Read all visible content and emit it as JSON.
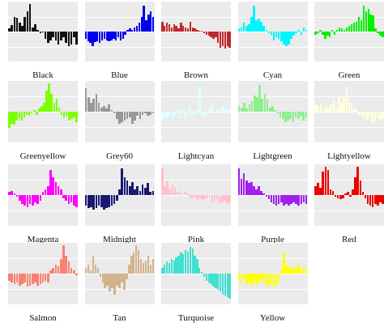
{
  "chart_data": [
    {
      "type": "bar",
      "title": "Black",
      "color": "#111111",
      "ylabel": "",
      "values": [
        0.1,
        0.22,
        0.52,
        0.48,
        0.3,
        0.2,
        0.5,
        0.7,
        0.95,
        0.15,
        0.25,
        0.05,
        -0.05,
        -0.02,
        -0.25,
        -0.4,
        -0.3,
        -0.2,
        -0.3,
        -0.45,
        -0.3,
        -0.2,
        -0.4,
        -0.5,
        -0.45,
        -0.2,
        -0.45
      ]
    },
    {
      "type": "bar",
      "title": "Blue",
      "color": "#0000ee",
      "ylabel": "",
      "values": [
        -0.25,
        -0.35,
        -0.4,
        -0.5,
        -0.38,
        -0.35,
        -0.4,
        -0.3,
        -0.25,
        -0.3,
        -0.35,
        -0.3,
        -0.25,
        -0.3,
        -0.2,
        -0.3,
        -0.25,
        -0.1,
        0.05,
        0.1,
        0.05,
        0.15,
        0.2,
        0.3,
        0.5,
        0.9,
        0.4,
        0.6,
        0.7,
        0.5
      ]
    },
    {
      "type": "bar",
      "title": "Brown",
      "color": "#c0282a",
      "ylabel": "",
      "values": [
        0.35,
        0.2,
        0.3,
        0.25,
        0.15,
        0.25,
        0.2,
        0.1,
        0.3,
        0.2,
        0.15,
        0.1,
        0.35,
        0.15,
        0.1,
        0.05,
        0.02,
        0.02,
        -0.05,
        -0.1,
        -0.15,
        -0.2,
        -0.25,
        -0.2,
        -0.4,
        -0.55,
        -0.5,
        -0.6,
        -0.5,
        -0.55
      ]
    },
    {
      "type": "bar",
      "title": "Cyan",
      "color": "#00f5ff",
      "ylabel": "",
      "values": [
        0.1,
        0.15,
        0.3,
        0.2,
        0.25,
        0.5,
        0.9,
        0.4,
        0.45,
        0.35,
        0.2,
        0.05,
        -0.05,
        -0.1,
        -0.3,
        -0.2,
        -0.25,
        -0.35,
        -0.45,
        -0.5,
        -0.45,
        -0.25,
        -0.15,
        -0.05,
        0.05,
        -0.1,
        0.15,
        0.05
      ]
    },
    {
      "type": "bar",
      "title": "Green",
      "color": "#00ee00",
      "ylabel": "",
      "values": [
        -0.1,
        -0.05,
        0.05,
        -0.1,
        -0.25,
        -0.15,
        -0.2,
        0.05,
        -0.1,
        0.05,
        0.15,
        0.1,
        0.05,
        0.15,
        0.2,
        0.25,
        0.3,
        0.35,
        0.5,
        0.4,
        0.9,
        0.7,
        0.8,
        0.6,
        0.55,
        0.1,
        -0.05,
        -0.15,
        -0.2
      ]
    },
    {
      "type": "bar",
      "title": "Greenyellow",
      "color": "#7fff00",
      "ylabel": "",
      "values": [
        -0.55,
        -0.4,
        -0.45,
        -0.3,
        -0.25,
        -0.3,
        -0.2,
        -0.1,
        -0.15,
        -0.05,
        0.05,
        -0.1,
        0.1,
        0.2,
        0.3,
        0.7,
        0.95,
        0.6,
        0.3,
        0.45,
        0.15,
        -0.1,
        -0.2,
        -0.15,
        -0.3,
        -0.25,
        -0.2,
        -0.35
      ]
    },
    {
      "type": "bar",
      "title": "Grey60",
      "color": "#999999",
      "ylabel": "",
      "values": [
        0.8,
        0.5,
        0.3,
        0.45,
        0.6,
        0.3,
        0.15,
        0.2,
        0.1,
        0.25,
        0.05,
        -0.05,
        -0.25,
        -0.4,
        -0.35,
        -0.3,
        -0.25,
        -0.2,
        -0.4,
        -0.3,
        -0.15,
        -0.25,
        -0.1,
        -0.05,
        -0.15,
        -0.1,
        -0.05
      ]
    },
    {
      "type": "bar",
      "title": "Lightcyan",
      "color": "#e0ffff",
      "ylabel": "",
      "values": [
        -0.3,
        -0.2,
        -0.25,
        -0.1,
        -0.3,
        -0.15,
        0.1,
        -0.2,
        0.05,
        -0.25,
        -0.1,
        0.2,
        -0.15,
        -0.05,
        0.05,
        0.85,
        -0.1,
        -0.2,
        -0.15,
        0.15,
        0.3,
        -0.05,
        0.1,
        0.05,
        0.2,
        0.1,
        0.05,
        0.15
      ]
    },
    {
      "type": "bar",
      "title": "Lightgreen",
      "color": "#90ee90",
      "ylabel": "",
      "values": [
        0.2,
        0.15,
        0.3,
        0.1,
        0.25,
        0.35,
        0.55,
        0.5,
        0.9,
        0.45,
        0.6,
        0.4,
        0.15,
        0.2,
        0.05,
        -0.05,
        -0.2,
        -0.25,
        -0.35,
        -0.3,
        -0.25,
        -0.35,
        -0.2,
        -0.25,
        -0.15,
        -0.3,
        -0.2
      ]
    },
    {
      "type": "bar",
      "title": "Lightyellow",
      "color": "#ffffe0",
      "ylabel": "",
      "values": [
        0.25,
        0.2,
        0.3,
        0.15,
        0.2,
        0.1,
        0.25,
        0.35,
        0.2,
        0.5,
        0.3,
        0.55,
        0.85,
        0.45,
        0.3,
        0.15,
        0.05,
        -0.1,
        -0.2,
        -0.25,
        -0.3,
        -0.15,
        -0.4,
        -0.35,
        -0.2,
        -0.3,
        -0.25
      ]
    },
    {
      "type": "bar",
      "title": "Magenta",
      "color": "#ff00ff",
      "ylabel": "",
      "values": [
        0.1,
        0.15,
        0.05,
        -0.05,
        -0.2,
        -0.3,
        -0.35,
        -0.4,
        -0.3,
        -0.35,
        -0.25,
        -0.3,
        -0.2,
        0.1,
        0.2,
        0.3,
        0.85,
        0.6,
        0.45,
        0.3,
        0.2,
        -0.1,
        -0.2,
        -0.3,
        -0.25,
        -0.35,
        -0.4
      ]
    },
    {
      "type": "bar",
      "title": "Midnight",
      "color": "#191970",
      "ylabel": "",
      "values": [
        -0.35,
        -0.45,
        -0.4,
        -0.5,
        -0.45,
        -0.35,
        -0.4,
        -0.5,
        -0.45,
        -0.4,
        -0.35,
        -0.3,
        -0.2,
        0.2,
        0.9,
        0.6,
        0.5,
        0.3,
        0.45,
        0.2,
        0.3,
        0.15,
        0.35,
        0.25,
        0.4,
        0.1,
        0.15
      ]
    },
    {
      "type": "bar",
      "title": "Pink",
      "color": "#ffc0cb",
      "ylabel": "",
      "values": [
        0.9,
        0.3,
        0.5,
        0.2,
        0.35,
        0.25,
        0.1,
        0.15,
        0.05,
        0.1,
        0.05,
        -0.05,
        -0.1,
        -0.05,
        -0.15,
        -0.1,
        -0.2,
        -0.15,
        -0.1,
        -0.05,
        -0.25,
        -0.2,
        -0.15,
        -0.3,
        -0.25,
        -0.2,
        -0.3,
        -0.25
      ]
    },
    {
      "type": "bar",
      "title": "Purple",
      "color": "#a020f0",
      "ylabel": "",
      "values": [
        0.9,
        0.55,
        0.75,
        0.5,
        0.4,
        0.45,
        0.3,
        0.2,
        0.3,
        0.15,
        0.05,
        -0.05,
        -0.15,
        -0.25,
        -0.3,
        -0.35,
        -0.3,
        -0.25,
        -0.35,
        -0.3,
        -0.35,
        -0.3,
        -0.25,
        -0.3,
        -0.35,
        -0.3,
        -0.25,
        -0.3
      ]
    },
    {
      "type": "bar",
      "title": "Red",
      "color": "#ee0000",
      "ylabel": "",
      "values": [
        0.3,
        0.4,
        0.25,
        0.8,
        0.95,
        0.85,
        0.2,
        0.15,
        -0.05,
        -0.1,
        -0.15,
        -0.1,
        0.05,
        0.1,
        -0.05,
        0.2,
        0.6,
        0.95,
        0.5,
        0.1,
        -0.1,
        -0.3,
        -0.35,
        -0.4,
        -0.3,
        -0.35,
        -0.25,
        -0.3
      ]
    },
    {
      "type": "bar",
      "title": "Salmon",
      "color": "#fa8072",
      "ylabel": "",
      "values": [
        -0.25,
        -0.3,
        -0.35,
        -0.3,
        -0.4,
        -0.35,
        -0.3,
        -0.45,
        -0.4,
        -0.35,
        -0.3,
        -0.4,
        -0.35,
        -0.3,
        -0.25,
        -0.3,
        0.1,
        0.2,
        0.3,
        0.25,
        0.5,
        0.95,
        0.6,
        0.4,
        0.2,
        0.1,
        -0.05
      ]
    },
    {
      "type": "bar",
      "title": "Tan",
      "color": "#d2b48c",
      "ylabel": "",
      "values": [
        0.2,
        0.3,
        0.1,
        0.6,
        0.3,
        0.2,
        -0.1,
        -0.3,
        -0.5,
        -0.4,
        -0.6,
        -0.5,
        -0.7,
        -0.4,
        -0.5,
        -0.3,
        -0.55,
        -0.2,
        0.3,
        0.6,
        0.7,
        0.95,
        0.8,
        0.5,
        0.35,
        0.45,
        0.6,
        0.3,
        0.5
      ]
    },
    {
      "type": "bar",
      "title": "Turquoise",
      "color": "#40e0d0",
      "ylabel": "",
      "values": [
        0.2,
        0.3,
        0.4,
        0.35,
        0.5,
        0.45,
        0.55,
        0.6,
        0.7,
        0.65,
        0.8,
        0.75,
        0.9,
        0.85,
        0.6,
        0.5,
        0.2,
        0.05,
        -0.1,
        -0.25,
        -0.3,
        -0.35,
        -0.45,
        -0.5,
        -0.55,
        -0.6,
        -0.7,
        -0.75,
        -0.8,
        -0.85
      ]
    },
    {
      "type": "bar",
      "title": "Yellow",
      "color": "#ffff00",
      "ylabel": "",
      "values": [
        -0.25,
        -0.3,
        -0.2,
        -0.35,
        -0.3,
        -0.4,
        -0.25,
        -0.35,
        -0.3,
        -0.2,
        -0.3,
        -0.4,
        -0.45,
        -0.35,
        -0.5,
        -0.4,
        -0.3,
        0.1,
        0.7,
        0.3,
        0.2,
        0.25,
        0.15,
        0.2,
        0.3,
        0.2,
        0.25,
        0.15
      ]
    }
  ]
}
